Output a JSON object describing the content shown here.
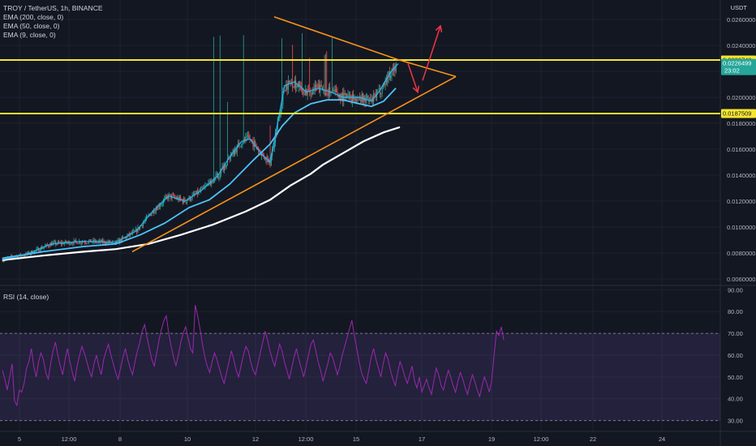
{
  "header": {
    "symbol_line": "TROY / TetherUS, 1h, BINANCE",
    "indicators": [
      "EMA (200, close, 0)",
      "EMA (50, close, 0)",
      "EMA (9, close, 0)"
    ],
    "unit": "USDT",
    "rsi_label": "RSI (14, close)"
  },
  "colors": {
    "background": "#131722",
    "grid": "#1e222d",
    "candle_up": "#26a69a",
    "candle_down": "#ef5350",
    "ema200": "#ffffff",
    "ema50": "#4fc3f7",
    "ema9": "#29b6f6",
    "support_resistance": "#f5e52f",
    "triangle": "#f7931a",
    "arrows": "#f23645",
    "rsi_line": "#9c27b0",
    "rsi_band": "#7e57c2"
  },
  "chart_data": [
    {
      "type": "candlestick",
      "title": "TROY / TetherUS, 1h, BINANCE",
      "x_ticks": [
        "5",
        "12:00",
        "8",
        "10",
        "12",
        "12:00",
        "15",
        "17",
        "19",
        "12:00",
        "22",
        "24"
      ],
      "y_ticks": [
        "0.0260000",
        "0.0240000",
        "0.0220000",
        "0.0200000",
        "0.0180000",
        "0.0160000",
        "0.0140000",
        "0.0120000",
        "0.0100000",
        "0.0080000",
        "0.0060000"
      ],
      "ylim": [
        0.0055,
        0.0275
      ],
      "price_labels": [
        {
          "label": "0.0228740",
          "value": 0.022874,
          "kind": "resistance"
        },
        {
          "label": "0.0226499",
          "value": 0.02265,
          "kind": "last",
          "countdown": "23:02"
        },
        {
          "label": "0.0187509",
          "value": 0.018751,
          "kind": "support"
        }
      ],
      "horizontal_lines": [
        0.022874,
        0.018751
      ],
      "ema200": [
        [
          0,
          0.00745
        ],
        [
          50,
          0.0078
        ],
        [
          100,
          0.0081
        ],
        [
          140,
          0.0083
        ],
        [
          180,
          0.0087
        ],
        [
          220,
          0.0094
        ],
        [
          260,
          0.0102
        ],
        [
          300,
          0.0112
        ],
        [
          330,
          0.0121
        ],
        [
          355,
          0.0132
        ],
        [
          380,
          0.0141
        ],
        [
          395,
          0.0148
        ],
        [
          420,
          0.0157
        ],
        [
          445,
          0.0166
        ],
        [
          470,
          0.0173
        ],
        [
          490,
          0.0177
        ]
      ],
      "ema50": [
        [
          0,
          0.0076
        ],
        [
          50,
          0.0081
        ],
        [
          100,
          0.0085
        ],
        [
          140,
          0.0087
        ],
        [
          170,
          0.0094
        ],
        [
          200,
          0.0103
        ],
        [
          230,
          0.0115
        ],
        [
          255,
          0.0121
        ],
        [
          280,
          0.0133
        ],
        [
          310,
          0.0152
        ],
        [
          330,
          0.0164
        ],
        [
          345,
          0.0178
        ],
        [
          360,
          0.0188
        ],
        [
          380,
          0.0195
        ],
        [
          400,
          0.0198
        ],
        [
          420,
          0.0198
        ],
        [
          440,
          0.0195
        ],
        [
          455,
          0.0193
        ],
        [
          470,
          0.0197
        ],
        [
          485,
          0.0207
        ]
      ],
      "ema9": [
        [
          0,
          0.0075
        ],
        [
          30,
          0.0079
        ],
        [
          60,
          0.0087
        ],
        [
          100,
          0.0089
        ],
        [
          140,
          0.0088
        ],
        [
          165,
          0.0097
        ],
        [
          185,
          0.0112
        ],
        [
          205,
          0.0124
        ],
        [
          225,
          0.012
        ],
        [
          245,
          0.0128
        ],
        [
          265,
          0.0139
        ],
        [
          280,
          0.0154
        ],
        [
          295,
          0.0166
        ],
        [
          305,
          0.0168
        ],
        [
          320,
          0.0156
        ],
        [
          330,
          0.015
        ],
        [
          338,
          0.0176
        ],
        [
          348,
          0.0209
        ],
        [
          360,
          0.0212
        ],
        [
          375,
          0.0204
        ],
        [
          390,
          0.0207
        ],
        [
          405,
          0.0204
        ],
        [
          420,
          0.02
        ],
        [
          440,
          0.02
        ],
        [
          455,
          0.0197
        ],
        [
          465,
          0.0205
        ],
        [
          478,
          0.0219
        ],
        [
          488,
          0.0226
        ]
      ],
      "triangle_upper": [
        [
          335,
          0.0262
        ],
        [
          488,
          0.0229
        ],
        [
          559,
          0.0216
        ]
      ],
      "triangle_lower": [
        [
          160,
          0.0081
        ],
        [
          559,
          0.0216
        ]
      ],
      "projection_arrows": [
        {
          "from": [
            500,
            0.0226
          ],
          "to": [
            512,
            0.0204
          ]
        },
        {
          "from": [
            518,
            0.0213
          ],
          "to": [
            540,
            0.0255
          ]
        }
      ]
    },
    {
      "type": "line",
      "title": "RSI (14, close)",
      "y_ticks": [
        "90.00",
        "80.00",
        "70.00",
        "60.00",
        "50.00",
        "40.00",
        "30.00"
      ],
      "ylim": [
        25,
        92
      ],
      "band": [
        30,
        70
      ],
      "series": [
        {
          "values": [
            53,
            49,
            44,
            50,
            56,
            39,
            37,
            44,
            43,
            47,
            54,
            57,
            63,
            55,
            50,
            57,
            61,
            58,
            52,
            49,
            56,
            62,
            66,
            60,
            55,
            51,
            58,
            63,
            57,
            52,
            48,
            55,
            60,
            64,
            61,
            57,
            53,
            50,
            56,
            60,
            55,
            51,
            58,
            62,
            65,
            60,
            56,
            52,
            49,
            54,
            59,
            63,
            58,
            54,
            51,
            57,
            62,
            66,
            71,
            74,
            68,
            63,
            58,
            55,
            61,
            67,
            72,
            76,
            78,
            70,
            64,
            59,
            55,
            60,
            66,
            70,
            73,
            68,
            63,
            61,
            83,
            78,
            72,
            65,
            59,
            55,
            52,
            57,
            61,
            58,
            54,
            50,
            47,
            52,
            57,
            62,
            58,
            53,
            50,
            55,
            60,
            64,
            62,
            57,
            53,
            51,
            56,
            61,
            66,
            71,
            67,
            62,
            58,
            55,
            60,
            65,
            62,
            57,
            53,
            49,
            54,
            59,
            63,
            58,
            54,
            50,
            55,
            60,
            65,
            67,
            62,
            57,
            53,
            48,
            52,
            56,
            61,
            59,
            55,
            51,
            55,
            60,
            64,
            68,
            72,
            76,
            69,
            63,
            57,
            52,
            49,
            47,
            53,
            59,
            63,
            58,
            54,
            50,
            56,
            61,
            58,
            53,
            49,
            46,
            52,
            57,
            54,
            50,
            47,
            51,
            55,
            48,
            45,
            50,
            43,
            46,
            49,
            45,
            42,
            48,
            54,
            51,
            46,
            44,
            49,
            53,
            50,
            46,
            43,
            48,
            52,
            49,
            45,
            42,
            47,
            51,
            48,
            44,
            41,
            46,
            50,
            47,
            43,
            48,
            60,
            71,
            69,
            73,
            67
          ]
        }
      ]
    }
  ]
}
